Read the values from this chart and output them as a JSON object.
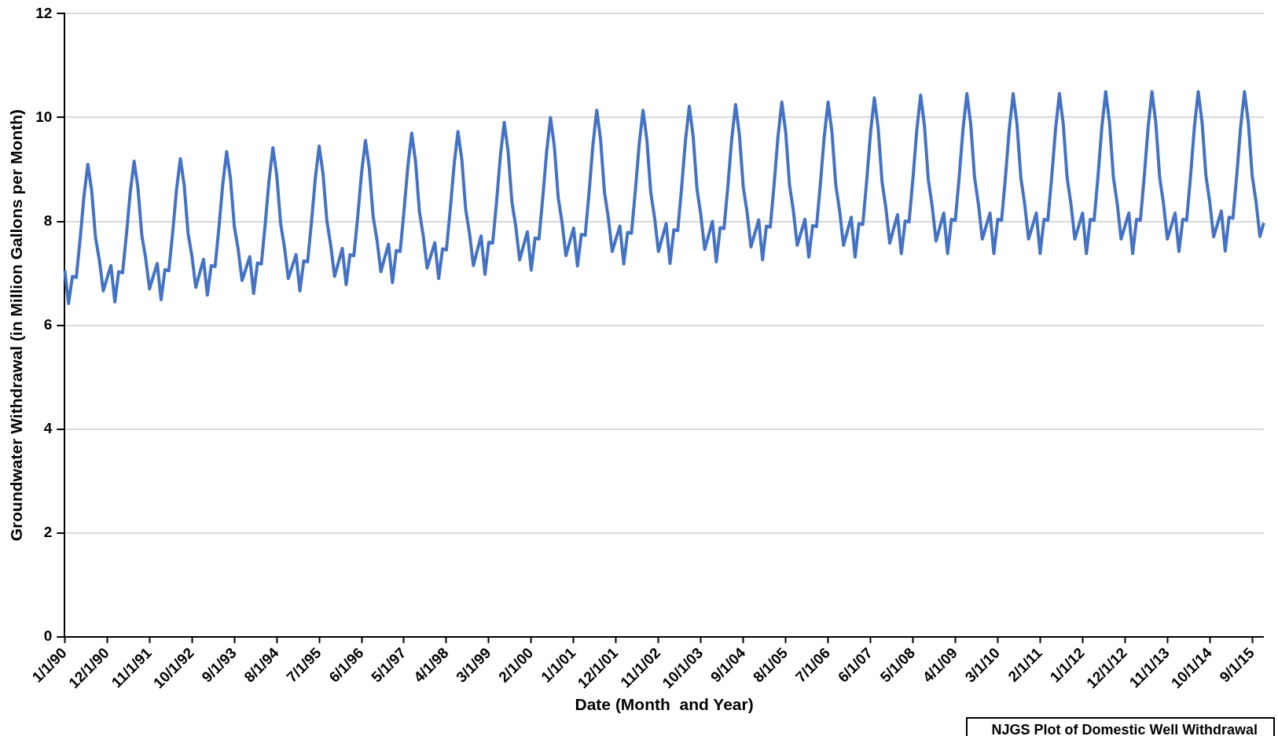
{
  "chart_data": {
    "type": "line",
    "xlabel": "Date (Month  and Year)",
    "ylabel": "Groundwater Withdrawal (in Million Gallons per Month)",
    "annotations": [
      "NJGS Plot of Domestic Well Withdrawal"
    ],
    "categories": [
      "1/1/90",
      null,
      null,
      null,
      null,
      null,
      null,
      null,
      null,
      null,
      null,
      "12/1/90",
      null,
      null,
      null,
      null,
      null,
      null,
      null,
      null,
      null,
      null,
      "11/1/91",
      null,
      null,
      null,
      null,
      null,
      null,
      null,
      null,
      null,
      null,
      "10/1/92",
      null,
      null,
      null,
      null,
      null,
      null,
      null,
      null,
      null,
      null,
      "9/1/93",
      null,
      null,
      null,
      null,
      null,
      null,
      null,
      null,
      null,
      null,
      "8/1/94",
      null,
      null,
      null,
      null,
      null,
      null,
      null,
      null,
      null,
      null,
      "7/1/95",
      null,
      null,
      null,
      null,
      null,
      null,
      null,
      null,
      null,
      null,
      "6/1/96",
      null,
      null,
      null,
      null,
      null,
      null,
      null,
      null,
      null,
      null,
      "5/1/97",
      null,
      null,
      null,
      null,
      null,
      null,
      null,
      null,
      null,
      null,
      "4/1/98",
      null,
      null,
      null,
      null,
      null,
      null,
      null,
      null,
      null,
      null,
      "3/1/99",
      null,
      null,
      null,
      null,
      null,
      null,
      null,
      null,
      null,
      null,
      "2/1/00",
      null,
      null,
      null,
      null,
      null,
      null,
      null,
      null,
      null,
      null,
      "1/1/01",
      null,
      null,
      null,
      null,
      null,
      null,
      null,
      null,
      null,
      null,
      "12/1/01",
      null,
      null,
      null,
      null,
      null,
      null,
      null,
      null,
      null,
      null,
      "11/1/02",
      null,
      null,
      null,
      null,
      null,
      null,
      null,
      null,
      null,
      null,
      "10/1/03",
      null,
      null,
      null,
      null,
      null,
      null,
      null,
      null,
      null,
      null,
      "9/1/04",
      null,
      null,
      null,
      null,
      null,
      null,
      null,
      null,
      null,
      null,
      "8/1/05",
      null,
      null,
      null,
      null,
      null,
      null,
      null,
      null,
      null,
      null,
      "7/1/06",
      null,
      null,
      null,
      null,
      null,
      null,
      null,
      null,
      null,
      null,
      "6/1/07",
      null,
      null,
      null,
      null,
      null,
      null,
      null,
      null,
      null,
      null,
      "5/1/08",
      null,
      null,
      null,
      null,
      null,
      null,
      null,
      null,
      null,
      null,
      "4/1/09",
      null,
      null,
      null,
      null,
      null,
      null,
      null,
      null,
      null,
      null,
      "3/1/10",
      null,
      null,
      null,
      null,
      null,
      null,
      null,
      null,
      null,
      null,
      "2/1/11",
      null,
      null,
      null,
      null,
      null,
      null,
      null,
      null,
      null,
      null,
      "1/1/12",
      null,
      null,
      null,
      null,
      null,
      null,
      null,
      null,
      null,
      null,
      "12/1/12",
      null,
      null,
      null,
      null,
      null,
      null,
      null,
      null,
      null,
      null,
      "11/1/13",
      null,
      null,
      null,
      null,
      null,
      null,
      null,
      null,
      null,
      null,
      "10/1/14",
      null,
      null,
      null,
      null,
      null,
      null,
      null,
      null,
      null,
      null,
      "9/1/15",
      null,
      null,
      null
    ],
    "series": [
      {
        "color": "#4472c4",
        "values": [
          7.06,
          6.42,
          6.94,
          6.92,
          7.66,
          8.49,
          9.1,
          8.59,
          7.68,
          7.25,
          6.66,
          6.91,
          7.15,
          6.45,
          7.03,
          7.01,
          7.74,
          8.56,
          9.16,
          8.64,
          7.73,
          7.29,
          6.7,
          6.95,
          7.19,
          6.49,
          7.07,
          7.05,
          7.78,
          8.61,
          9.21,
          8.69,
          7.77,
          7.33,
          6.73,
          7.0,
          7.27,
          6.58,
          7.15,
          7.13,
          7.88,
          8.72,
          9.34,
          8.82,
          7.9,
          7.46,
          6.86,
          7.09,
          7.32,
          6.61,
          7.2,
          7.18,
          7.94,
          8.79,
          9.42,
          8.89,
          7.96,
          7.5,
          6.9,
          7.13,
          7.36,
          6.66,
          7.24,
          7.22,
          7.98,
          8.83,
          9.45,
          8.92,
          8.01,
          7.54,
          6.94,
          7.21,
          7.48,
          6.78,
          7.36,
          7.34,
          8.09,
          8.94,
          9.56,
          9.03,
          8.09,
          7.64,
          7.03,
          7.3,
          7.56,
          6.82,
          7.44,
          7.42,
          8.2,
          9.06,
          9.7,
          9.15,
          8.19,
          7.72,
          7.1,
          7.35,
          7.59,
          6.9,
          7.47,
          7.45,
          8.23,
          9.09,
          9.73,
          9.19,
          8.23,
          7.77,
          7.15,
          7.44,
          7.72,
          6.98,
          7.6,
          7.58,
          8.37,
          9.26,
          9.91,
          9.35,
          8.37,
          7.9,
          7.26,
          7.53,
          7.8,
          7.06,
          7.68,
          7.66,
          8.46,
          9.34,
          10.0,
          9.44,
          8.46,
          7.98,
          7.34,
          7.61,
          7.87,
          7.14,
          7.75,
          7.73,
          8.55,
          9.47,
          10.14,
          9.57,
          8.56,
          8.07,
          7.42,
          7.67,
          7.91,
          7.18,
          7.79,
          7.77,
          8.58,
          9.48,
          10.14,
          9.57,
          8.56,
          8.07,
          7.42,
          7.69,
          7.96,
          7.19,
          7.84,
          7.82,
          8.64,
          9.55,
          10.22,
          9.64,
          8.62,
          8.12,
          7.46,
          7.73,
          8.0,
          7.22,
          7.88,
          7.86,
          8.67,
          9.58,
          10.25,
          9.67,
          8.66,
          8.17,
          7.51,
          7.77,
          8.03,
          7.26,
          7.91,
          7.89,
          8.71,
          9.63,
          10.3,
          9.72,
          8.7,
          8.2,
          7.54,
          7.79,
          8.04,
          7.31,
          7.92,
          7.9,
          8.72,
          9.63,
          10.3,
          9.72,
          8.7,
          8.2,
          7.54,
          7.81,
          8.08,
          7.31,
          7.96,
          7.94,
          8.77,
          9.7,
          10.38,
          9.79,
          8.76,
          8.25,
          7.58,
          7.86,
          8.13,
          7.38,
          8.01,
          7.99,
          8.82,
          9.75,
          10.43,
          9.84,
          8.8,
          8.29,
          7.62,
          7.89,
          8.16,
          7.38,
          8.04,
          8.02,
          8.85,
          9.78,
          10.46,
          9.87,
          8.84,
          8.33,
          7.66,
          7.91,
          8.16,
          7.38,
          8.04,
          8.02,
          8.85,
          9.78,
          10.46,
          9.87,
          8.84,
          8.33,
          7.66,
          7.91,
          8.16,
          7.38,
          8.04,
          8.02,
          8.85,
          9.78,
          10.46,
          9.87,
          8.84,
          8.33,
          7.66,
          7.91,
          8.16,
          7.38,
          8.04,
          8.02,
          8.86,
          9.81,
          10.5,
          9.9,
          8.85,
          8.34,
          7.66,
          7.91,
          8.16,
          7.38,
          8.04,
          8.02,
          8.86,
          9.81,
          10.5,
          9.9,
          8.85,
          8.34,
          7.66,
          7.91,
          8.16,
          7.42,
          8.04,
          8.02,
          8.86,
          9.81,
          10.5,
          9.91,
          8.88,
          8.37,
          7.7,
          7.95,
          8.2,
          7.43,
          8.08,
          8.06,
          8.89,
          9.82,
          10.5,
          9.91,
          8.88,
          8.38,
          7.71,
          7.97
        ]
      }
    ],
    "ylim": [
      0,
      12
    ],
    "yticks": [
      0,
      2,
      4,
      6,
      8,
      10,
      12
    ],
    "grid": "y",
    "legend": false
  }
}
